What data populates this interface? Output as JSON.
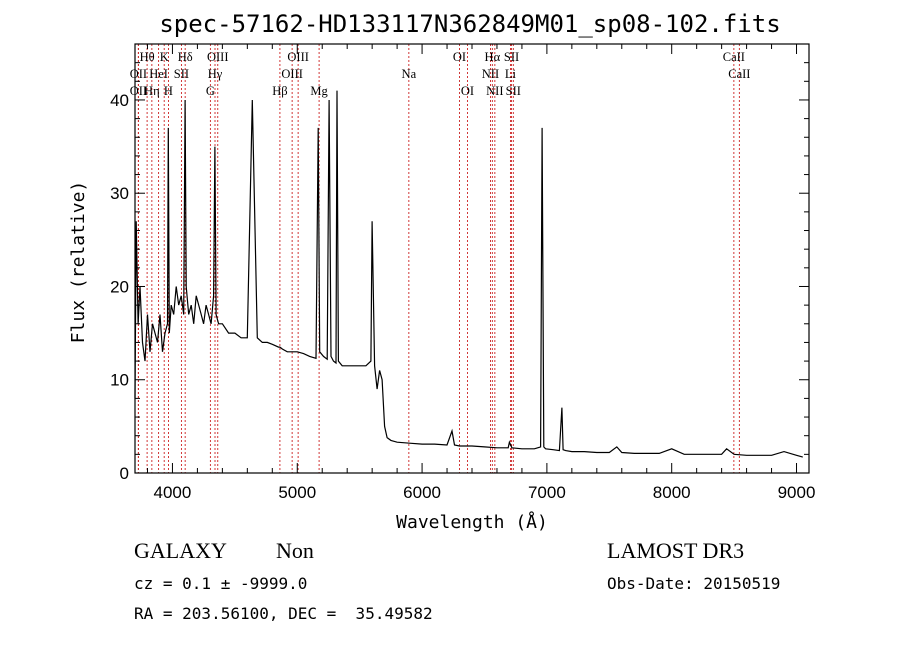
{
  "chart_data": {
    "type": "line",
    "title": "spec-57162-HD133117N362849M01_sp08-102.fits",
    "xlabel": "Wavelength (Å)",
    "ylabel": "Flux (relative)",
    "xlim": [
      3700,
      9100
    ],
    "ylim": [
      0,
      46
    ],
    "xticks": [
      4000,
      5000,
      6000,
      7000,
      8000,
      9000
    ],
    "yticks": [
      0,
      10,
      20,
      30,
      40
    ],
    "grid": false,
    "series": [
      {
        "values_note": "",
        "x": [
          3700,
          3710,
          3725,
          3740,
          3760,
          3780,
          3800,
          3820,
          3840,
          3860,
          3880,
          3900,
          3920,
          3940,
          3960,
          3967,
          3975,
          3990,
          4010,
          4030,
          4050,
          4070,
          4090,
          4101,
          4110,
          4130,
          4150,
          4170,
          4190,
          4210,
          4230,
          4250,
          4270,
          4290,
          4310,
          4330,
          4340,
          4350,
          4370,
          4400,
          4450,
          4500,
          4550,
          4600,
          4640,
          4680,
          4720,
          4760,
          4800,
          4850,
          4861,
          4880,
          4920,
          4960,
          5000,
          5050,
          5100,
          5150,
          5168,
          5180,
          5210,
          5240,
          5255,
          5270,
          5290,
          5310,
          5318,
          5330,
          5360,
          5400,
          5450,
          5500,
          5550,
          5590,
          5600,
          5620,
          5640,
          5660,
          5680,
          5700,
          5720,
          5750,
          5800,
          5900,
          6000,
          6100,
          6200,
          6240,
          6260,
          6300,
          6400,
          6500,
          6600,
          6690,
          6700,
          6720,
          6800,
          6900,
          6950,
          6962,
          6975,
          6990,
          7050,
          7100,
          7120,
          7130,
          7150,
          7200,
          7300,
          7400,
          7500,
          7560,
          7600,
          7700,
          7800,
          7900,
          8000,
          8100,
          8200,
          8300,
          8400,
          8440,
          8500,
          8600,
          8700,
          8800,
          8900,
          9000,
          9050
        ],
        "y": [
          8,
          27,
          16,
          20,
          14,
          12,
          17,
          13,
          16,
          15,
          14,
          17,
          13,
          15,
          16,
          37,
          15,
          18,
          17,
          20,
          18,
          19,
          17,
          40,
          20,
          17,
          18,
          16,
          19,
          18,
          17,
          16,
          18,
          17,
          16,
          19,
          35,
          17,
          16,
          16,
          15,
          15,
          14.5,
          14.5,
          40,
          14.5,
          14,
          14,
          13.8,
          13.5,
          13.5,
          13.3,
          13,
          13,
          13,
          12.8,
          12.5,
          12.3,
          37,
          13,
          12.5,
          12.2,
          40,
          12.5,
          12,
          11.8,
          41,
          12,
          11.5,
          11.5,
          11.5,
          11.5,
          11.5,
          12,
          27,
          11.5,
          9,
          11,
          10,
          5,
          3.8,
          3.5,
          3.3,
          3.2,
          3.1,
          3.1,
          3.0,
          4.5,
          3.0,
          2.9,
          2.9,
          2.8,
          2.7,
          2.7,
          3.3,
          2.7,
          2.6,
          2.6,
          2.8,
          37,
          2.8,
          2.6,
          2.5,
          2.4,
          7,
          2.5,
          2.4,
          2.3,
          2.3,
          2.2,
          2.2,
          2.8,
          2.2,
          2.1,
          2.1,
          2.1,
          2.6,
          2.0,
          2.0,
          2.0,
          2.0,
          2.6,
          2.0,
          1.9,
          1.9,
          1.9,
          2.3,
          1.9,
          1.7
        ]
      }
    ],
    "line_markers": [
      {
        "label": "OII",
        "x": 3727,
        "row": 1
      },
      {
        "label": "OII",
        "x": 3727,
        "row": 2
      },
      {
        "label": "Hθ",
        "x": 3797,
        "row": 0
      },
      {
        "label": "Hη",
        "x": 3835,
        "row": 2
      },
      {
        "label": "K",
        "x": 3934,
        "row": 0
      },
      {
        "label": "HeI",
        "x": 3889,
        "row": 1
      },
      {
        "label": "H",
        "x": 3968,
        "row": 2
      },
      {
        "label": "Hδ",
        "x": 4102,
        "row": 0
      },
      {
        "label": "SII",
        "x": 4072,
        "row": 1
      },
      {
        "label": "G",
        "x": 4304,
        "row": 2
      },
      {
        "label": "Hγ",
        "x": 4341,
        "row": 1
      },
      {
        "label": "OIII",
        "x": 4363,
        "row": 0
      },
      {
        "label": "Hβ",
        "x": 4861,
        "row": 2
      },
      {
        "label": "OIII",
        "x": 4959,
        "row": 1
      },
      {
        "label": "OIII",
        "x": 5007,
        "row": 0
      },
      {
        "label": "Mg",
        "x": 5175,
        "row": 2
      },
      {
        "label": "Na",
        "x": 5894,
        "row": 1
      },
      {
        "label": "OI",
        "x": 6300,
        "row": 0
      },
      {
        "label": "OI",
        "x": 6364,
        "row": 2
      },
      {
        "label": "NII",
        "x": 6548,
        "row": 1
      },
      {
        "label": "Hα",
        "x": 6563,
        "row": 0
      },
      {
        "label": "NII",
        "x": 6583,
        "row": 2
      },
      {
        "label": "SII",
        "x": 6717,
        "row": 0
      },
      {
        "label": "Li",
        "x": 6708,
        "row": 1
      },
      {
        "label": "SII",
        "x": 6731,
        "row": 2
      },
      {
        "label": "CaII",
        "x": 8498,
        "row": 0
      },
      {
        "label": "CaII",
        "x": 8542,
        "row": 1
      }
    ]
  },
  "info": {
    "class": "GALAXY",
    "subclass": "Non",
    "survey": "LAMOST DR3",
    "cz_line": "cz = 0.1 ± -9999.0",
    "obs_date": "Obs-Date: 20150519",
    "coords": "RA = 203.56100, DEC =  35.49582"
  }
}
